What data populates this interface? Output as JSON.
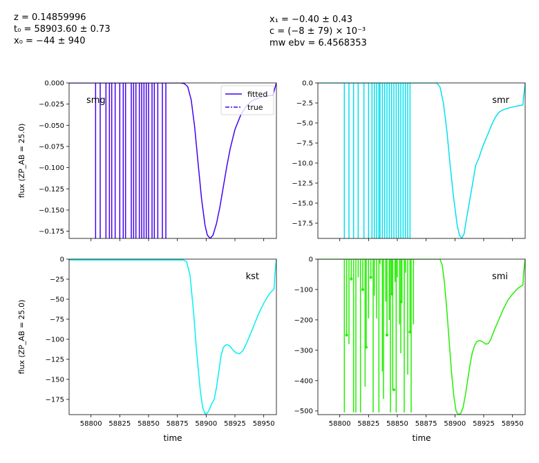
{
  "header": {
    "left": [
      "z = 0.14859996",
      "t₀ = 58903.60 ± 0.73",
      "x₀ = −44 ± 940"
    ],
    "right": [
      "x₁ = −0.40 ± 0.43",
      "c = (−8 ± 79) × 10⁻³",
      "mw ebv = 6.4568353"
    ]
  },
  "colors": {
    "smg": "#4400ee",
    "smr": "#00e0f0",
    "kst": "#00f0f0",
    "smi": "#22ee00"
  },
  "chart_data": [
    {
      "type": "line",
      "band": "smg",
      "ylabel": "flux (ZP_AB = 25.0)",
      "xlim": [
        58781,
        58961
      ],
      "ylim": [
        -0.1835,
        0.0
      ],
      "yticks": [
        0.0,
        -0.025,
        -0.05,
        -0.075,
        -0.1,
        -0.125,
        -0.15,
        -0.175
      ],
      "ytick_labels": [
        "0.000",
        "−0.025",
        "−0.050",
        "−0.075",
        "−0.100",
        "−0.125",
        "−0.150",
        "−0.175"
      ],
      "legend": [
        "fitted",
        "true"
      ],
      "legend_position": "top-right",
      "fitted": {
        "x": [
          58781,
          58878,
          58881,
          58884,
          58887,
          58890,
          58893,
          58896,
          58899,
          58901,
          58903.6,
          58906,
          58909,
          58912,
          58915,
          58918,
          58921,
          58925,
          58930,
          58935,
          58940,
          58945,
          58950,
          58955,
          58958,
          58959.5,
          58961
        ],
        "y": [
          0.0,
          0.0,
          -0.0008,
          -0.0045,
          -0.02,
          -0.052,
          -0.095,
          -0.137,
          -0.168,
          -0.1795,
          -0.1835,
          -0.1795,
          -0.166,
          -0.146,
          -0.122,
          -0.098,
          -0.077,
          -0.055,
          -0.038,
          -0.027,
          -0.021,
          -0.018,
          -0.016,
          -0.015,
          -0.0145,
          -0.007,
          0.0
        ]
      },
      "spikes_x": [
        58804,
        58808,
        58813,
        58816,
        58818,
        58821,
        58825,
        58828,
        58830,
        58835,
        58837,
        58839,
        58842,
        58844,
        58846,
        58848,
        58850,
        58853,
        58855,
        58858,
        58862,
        58865
      ],
      "spikes_y": -0.1835
    },
    {
      "type": "line",
      "band": "smr",
      "xlim": [
        58781,
        58961
      ],
      "ylim": [
        -19.4,
        0.0
      ],
      "yticks": [
        0.0,
        -2.5,
        -5.0,
        -7.5,
        -10.0,
        -12.5,
        -15.0,
        -17.5
      ],
      "ytick_labels": [
        "0.0",
        "−2.5",
        "−5.0",
        "−7.5",
        "−10.0",
        "−12.5",
        "−15.0",
        "−17.5"
      ],
      "fitted": {
        "x": [
          58781,
          58884,
          58887,
          58890,
          58893,
          58896,
          58899,
          58902,
          58904,
          58906,
          58908,
          58910,
          58913,
          58916,
          58918,
          58921,
          58924,
          58928,
          58932,
          58935,
          58938,
          58941,
          58945,
          58950,
          58955,
          58959,
          58959.6,
          58961
        ],
        "y": [
          0.0,
          0.0,
          -0.5,
          -2.5,
          -6.0,
          -10.5,
          -14.5,
          -17.8,
          -19.0,
          -19.4,
          -18.8,
          -17.0,
          -14.5,
          -12.0,
          -10.3,
          -9.3,
          -8.0,
          -6.6,
          -5.2,
          -4.3,
          -3.7,
          -3.4,
          -3.2,
          -3.0,
          -2.85,
          -2.75,
          -1.8,
          0.0
        ]
      },
      "spikes_x": [
        58804,
        58808,
        58812,
        58816,
        58821,
        58825,
        58828,
        58830,
        58832,
        58834,
        58835,
        58837,
        58839,
        58841,
        58843,
        58845,
        58847,
        58849,
        58851,
        58853,
        58855,
        58857,
        58859,
        58861
      ],
      "spikes_y": -19.4
    },
    {
      "type": "line",
      "band": "kst",
      "ylabel": "flux (ZP_AB = 25.0)",
      "xlabel": "time",
      "xlim": [
        58781,
        58961
      ],
      "ylim": [
        -194,
        0
      ],
      "xticks": [
        58800,
        58825,
        58850,
        58875,
        58900,
        58925,
        58950
      ],
      "yticks": [
        0,
        -25,
        -50,
        -75,
        -100,
        -125,
        -150,
        -175
      ],
      "ytick_labels": [
        "0",
        "−25",
        "−50",
        "−75",
        "−100",
        "−125",
        "−150",
        "−175"
      ],
      "fitted": {
        "x": [
          58781,
          58799,
          58800,
          58880,
          58883,
          58886,
          58889,
          58892,
          58895,
          58897,
          58899,
          58901,
          58903,
          58905,
          58907,
          58909,
          58911,
          58913,
          58915,
          58917,
          58919,
          58921,
          58923,
          58926,
          58929,
          58932,
          58935,
          58940,
          58945,
          58950,
          58955,
          58959,
          58959.6,
          58961
        ],
        "y": [
          -1,
          -1,
          -1,
          -1,
          -3,
          -20,
          -65,
          -120,
          -165,
          -185,
          -193,
          -192,
          -187,
          -180,
          -175,
          -160,
          -140,
          -120,
          -110,
          -107,
          -107,
          -109,
          -113,
          -117,
          -118,
          -114,
          -105,
          -88,
          -70,
          -55,
          -43,
          -37,
          -20,
          0
        ]
      }
    },
    {
      "type": "line",
      "band": "smi",
      "xlabel": "time",
      "xlim": [
        58781,
        58961
      ],
      "ylim": [
        -512,
        0
      ],
      "xticks": [
        58800,
        58825,
        58850,
        58875,
        58900,
        58925,
        58950
      ],
      "yticks": [
        0,
        -100,
        -200,
        -300,
        -400,
        -500
      ],
      "ytick_labels": [
        "0",
        "−100",
        "−200",
        "−300",
        "−400",
        "−500"
      ],
      "fitted": {
        "x": [
          58781,
          58887,
          58889,
          58891,
          58893,
          58895,
          58897,
          58899,
          58901,
          58903,
          58905,
          58907,
          58909,
          58911,
          58913,
          58915,
          58917,
          58919,
          58921,
          58923,
          58925,
          58927,
          58929,
          58931,
          58934,
          58938,
          58942,
          58946,
          58950,
          58955,
          58959,
          58959.6,
          58961
        ],
        "y": [
          0,
          0,
          -20,
          -80,
          -170,
          -270,
          -370,
          -450,
          -500,
          -512,
          -508,
          -490,
          -450,
          -400,
          -350,
          -310,
          -285,
          -272,
          -268,
          -270,
          -275,
          -280,
          -278,
          -265,
          -235,
          -200,
          -165,
          -135,
          -115,
          -95,
          -85,
          -45,
          0
        ]
      },
      "spikes": [
        [
          58804,
          -505
        ],
        [
          58806,
          -255
        ],
        [
          58808,
          -280
        ],
        [
          58810,
          -70
        ],
        [
          58812,
          -505
        ],
        [
          58814,
          -505
        ],
        [
          58816,
          -60
        ],
        [
          58818,
          -505
        ],
        [
          58820,
          -100
        ],
        [
          58822,
          -420
        ],
        [
          58823,
          -290
        ],
        [
          58825,
          -195
        ],
        [
          58827,
          -60
        ],
        [
          58829,
          -505
        ],
        [
          58830,
          -120
        ],
        [
          58832,
          -195
        ],
        [
          58834,
          -505
        ],
        [
          58835,
          -15
        ],
        [
          58837,
          -370
        ],
        [
          58838,
          -460
        ],
        [
          58840,
          -140
        ],
        [
          58841,
          -250
        ],
        [
          58843,
          -200
        ],
        [
          58844,
          -505
        ],
        [
          58845,
          -115
        ],
        [
          58846,
          -430
        ],
        [
          58848,
          -75
        ],
        [
          58849,
          -505
        ],
        [
          58850,
          -60
        ],
        [
          58852,
          -215
        ],
        [
          58853,
          -310
        ],
        [
          58854,
          -145
        ],
        [
          58856,
          -505
        ],
        [
          58857,
          -45
        ],
        [
          58859,
          -380
        ],
        [
          58861,
          -240
        ],
        [
          58862,
          -505
        ],
        [
          58864,
          -215
        ]
      ],
      "spike_dots": [
        [
          58806,
          -250
        ],
        [
          58810,
          -65
        ],
        [
          58820,
          -100
        ],
        [
          58823,
          -290
        ],
        [
          58827,
          -60
        ],
        [
          58841,
          -250
        ],
        [
          58845,
          -115
        ],
        [
          58847,
          -430
        ],
        [
          58853,
          -140
        ],
        [
          58861,
          -240
        ]
      ]
    }
  ],
  "band_labels": [
    "smg",
    "smr",
    "kst",
    "smi"
  ]
}
